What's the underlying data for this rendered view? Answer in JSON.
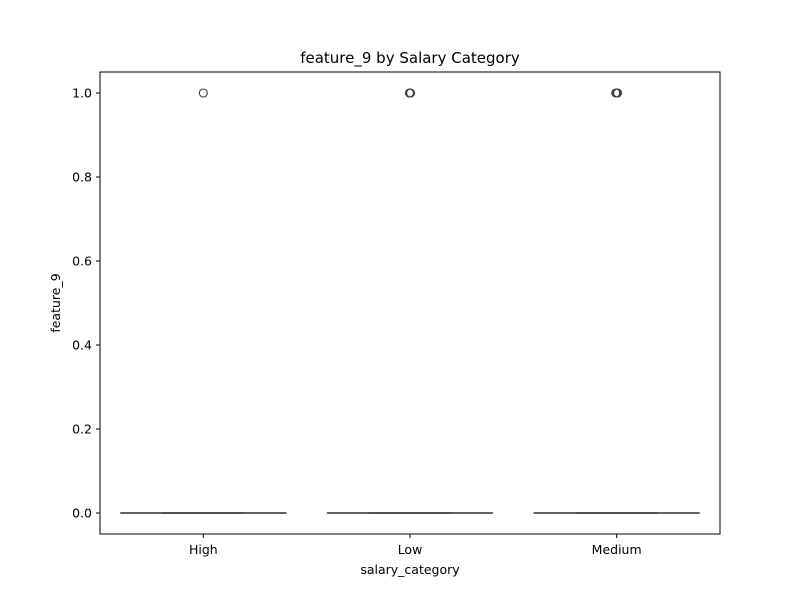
{
  "chart_data": {
    "type": "box",
    "title": "feature_9 by Salary Category",
    "xlabel": "salary_category",
    "ylabel": "feature_9",
    "categories": [
      "High",
      "Low",
      "Medium"
    ],
    "ylim": [
      -0.05,
      1.05
    ],
    "yticks": [
      0.0,
      0.2,
      0.4,
      0.6,
      0.8,
      1.0
    ],
    "ytick_labels": [
      "0.0",
      "0.2",
      "0.4",
      "0.6",
      "0.8",
      "1.0"
    ],
    "boxes": [
      {
        "category": "High",
        "min": 0.0,
        "q1": 0.0,
        "median": 0.0,
        "q3": 0.0,
        "max": 0.0,
        "outliers": [
          1.0
        ]
      },
      {
        "category": "Low",
        "min": 0.0,
        "q1": 0.0,
        "median": 0.0,
        "q3": 0.0,
        "max": 0.0,
        "outliers": [
          1.0,
          1.0,
          1.0
        ]
      },
      {
        "category": "Medium",
        "min": 0.0,
        "q1": 0.0,
        "median": 0.0,
        "q3": 0.0,
        "max": 0.0,
        "outliers": [
          1.0,
          1.0,
          1.0,
          1.0
        ]
      }
    ],
    "colors": {
      "box_line": "#3d3d3d",
      "axis": "#000000",
      "outlier_edge": "#3d3d3d"
    }
  }
}
